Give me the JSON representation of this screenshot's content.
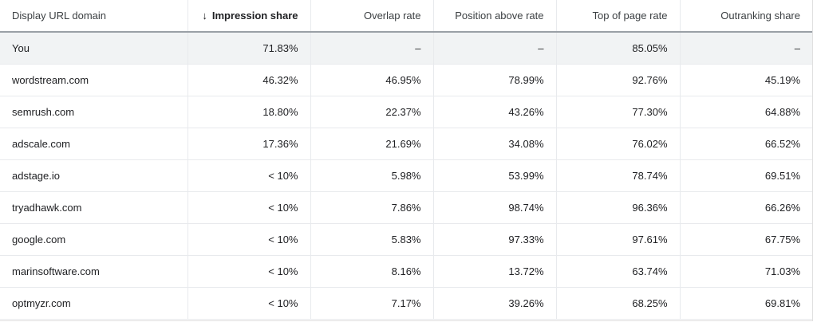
{
  "table": {
    "columns": [
      {
        "label": "Display URL domain",
        "sorted": false
      },
      {
        "label": "Impression share",
        "sorted": true,
        "sort_icon": "arrow-down-icon",
        "sort_glyph": "↓"
      },
      {
        "label": "Overlap rate",
        "sorted": false
      },
      {
        "label": "Position above rate",
        "sorted": false
      },
      {
        "label": "Top of page rate",
        "sorted": false
      },
      {
        "label": "Outranking share",
        "sorted": false
      }
    ],
    "rows": [
      [
        "You",
        "71.83%",
        "–",
        "–",
        "85.05%",
        "–"
      ],
      [
        "wordstream.com",
        "46.32%",
        "46.95%",
        "78.99%",
        "92.76%",
        "45.19%"
      ],
      [
        "semrush.com",
        "18.80%",
        "22.37%",
        "43.26%",
        "77.30%",
        "64.88%"
      ],
      [
        "adscale.com",
        "17.36%",
        "21.69%",
        "34.08%",
        "76.02%",
        "66.52%"
      ],
      [
        "adstage.io",
        "< 10%",
        "5.98%",
        "53.99%",
        "78.74%",
        "69.51%"
      ],
      [
        "tryadhawk.com",
        "< 10%",
        "7.86%",
        "98.74%",
        "96.36%",
        "66.26%"
      ],
      [
        "google.com",
        "< 10%",
        "5.83%",
        "97.33%",
        "97.61%",
        "67.75%"
      ],
      [
        "marinsoftware.com",
        "< 10%",
        "8.16%",
        "13.72%",
        "63.74%",
        "71.03%"
      ],
      [
        "optmyzr.com",
        "< 10%",
        "7.17%",
        "39.26%",
        "68.25%",
        "69.81%"
      ]
    ]
  },
  "colors": {
    "highlight_row_bg": "#f1f3f4",
    "header_rule": "#9aa0a6",
    "grid_line": "#e8eaed"
  }
}
